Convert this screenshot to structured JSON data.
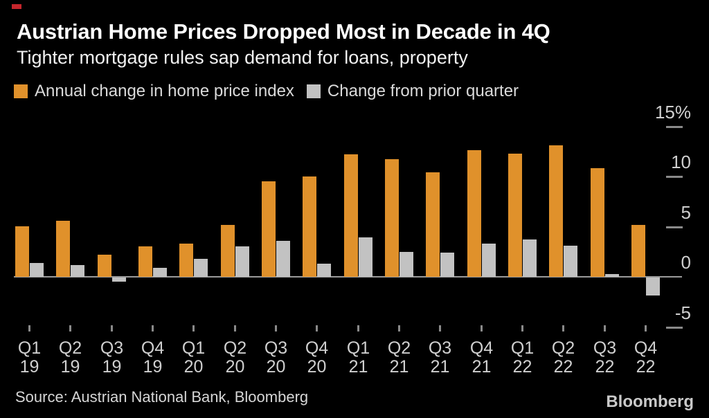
{
  "header": {
    "title": "Austrian Home Prices Dropped Most in Decade in 4Q",
    "subtitle": "Tighter mortgage rules sap demand for loans, property"
  },
  "accent_mark_color": "#C4262C",
  "footer": {
    "source": "Source: Austrian National Bank, Bloomberg",
    "logo": "Bloomberg"
  },
  "chart_data": {
    "type": "bar",
    "title": "Austrian Home Prices Dropped Most in Decade in 4Q",
    "subtitle": "Tighter mortgage rules sap demand for loans, property",
    "unit": "%",
    "categories": [
      "Q1 19",
      "Q2 19",
      "Q3 19",
      "Q4 19",
      "Q1 20",
      "Q2 20",
      "Q3 20",
      "Q4 20",
      "Q1 21",
      "Q2 21",
      "Q3 21",
      "Q4 21",
      "Q1 22",
      "Q2 22",
      "Q3 22",
      "Q4 22"
    ],
    "series": [
      {
        "name": "Annual change in home price index",
        "color": "#E0912B",
        "values": [
          5.0,
          5.6,
          2.2,
          3.0,
          3.3,
          5.2,
          9.5,
          10.0,
          12.2,
          11.7,
          10.4,
          12.6,
          12.3,
          13.1,
          10.8,
          5.2
        ]
      },
      {
        "name": "Change from prior quarter",
        "color": "#C2C2C2",
        "values": [
          1.4,
          1.2,
          -0.4,
          0.9,
          1.8,
          3.0,
          3.6,
          1.3,
          3.9,
          2.5,
          2.4,
          3.3,
          3.7,
          3.1,
          0.3,
          -1.8
        ]
      }
    ],
    "y_ticks": [
      {
        "label": "15%",
        "value": 15
      },
      {
        "label": "10",
        "value": 10
      },
      {
        "label": "5",
        "value": 5
      },
      {
        "label": "0",
        "value": 0
      },
      {
        "label": "-5",
        "value": -5
      }
    ],
    "ylim": [
      -5.5,
      15.5
    ],
    "legend_position": "top-left",
    "grid": "right-tick-dashes-only",
    "background": "#000000"
  }
}
